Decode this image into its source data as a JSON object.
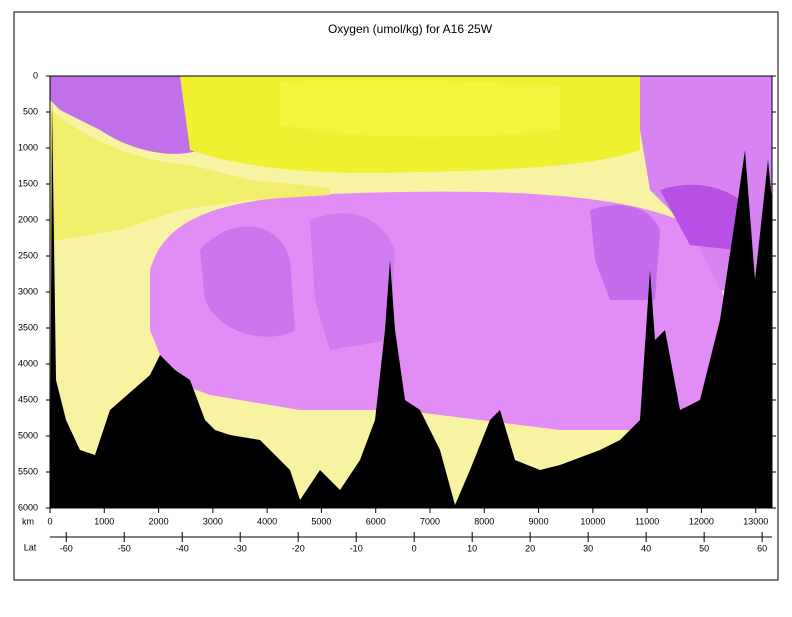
{
  "chart_data": {
    "type": "section",
    "title": "Oxygen (umol/kg) for A16 25W",
    "xlabel": "km",
    "xlim": [
      0,
      13300
    ],
    "xticks": [
      0,
      1000,
      2000,
      3000,
      4000,
      5000,
      6000,
      7000,
      8000,
      9000,
      10000,
      11000,
      12000,
      13000
    ],
    "ylim": [
      0,
      6000
    ],
    "yticks": [
      0,
      500,
      1000,
      1500,
      2000,
      2500,
      3000,
      3500,
      4000,
      4500,
      5000,
      5500,
      6000
    ],
    "x2label": "Lat",
    "x2lim": [
      -62.8,
      61.7
    ],
    "x2ticks": [
      -60,
      -50,
      -40,
      -30,
      -20,
      -10,
      0,
      10,
      20,
      30,
      40,
      50,
      60
    ]
  }
}
